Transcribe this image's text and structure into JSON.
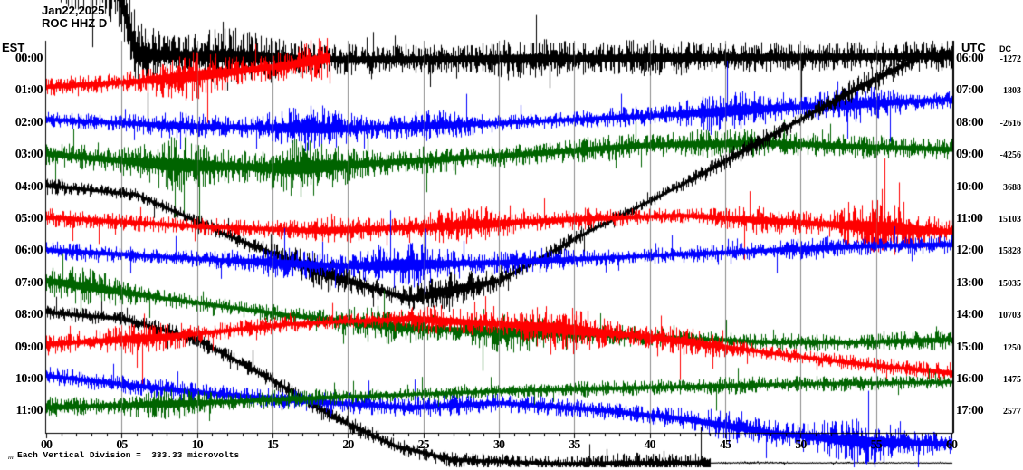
{
  "title": {
    "date": "Jan22,2025",
    "station": "ROC HHZ D"
  },
  "left_axis": {
    "header": "EST"
  },
  "right_axis": {
    "header_time": "UTC",
    "header_dc": "DC"
  },
  "footer": {
    "scale_note": "Each Vertical Division =  333.33 microvolts",
    "corner_mark": "m"
  },
  "colors": {
    "trace_cycle": [
      "#000000",
      "#ff0000",
      "#0000ff",
      "#006400"
    ],
    "grid": "#8c8c8c",
    "axis": "#000000",
    "background": "#ffffff",
    "text": "#000000"
  },
  "chart_data": {
    "type": "line",
    "subtype": "helicorder-seismogram",
    "title": "Jan22,2025 ROC HHZ D",
    "xlabel_ticks": [
      "00",
      "05",
      "10",
      "15",
      "20",
      "25",
      "30",
      "35",
      "40",
      "45",
      "50",
      "55",
      "60"
    ],
    "x_range_minutes": [
      0,
      60
    ],
    "minor_tick_every_min": 1,
    "grid": "vertical-every-5-min",
    "legend_position": "none",
    "scale_note": "Each Vertical Division =  333.33 microvolts",
    "rows": [
      {
        "est": "00:00",
        "utc": "06:00",
        "dc": "-1272",
        "color_index": 0,
        "start_min": 0,
        "end_min": 60,
        "amp": 55,
        "path": [
          [
            0,
            -25
          ],
          [
            4.5,
            -25
          ],
          [
            6,
            60
          ],
          [
            20,
            66
          ],
          [
            40,
            64
          ],
          [
            60,
            62
          ]
        ]
      },
      {
        "est": "01:00",
        "utc": "07:00",
        "dc": "-1803",
        "color_index": 1,
        "start_min": 0,
        "end_min": 18.8,
        "amp": 32,
        "path": [
          [
            0,
            96
          ],
          [
            6,
            90
          ],
          [
            12,
            80
          ],
          [
            16,
            72
          ],
          [
            18.8,
            64
          ]
        ]
      },
      {
        "est": "02:00",
        "utc": "08:00",
        "dc": "-2616",
        "color_index": 2,
        "start_min": 0,
        "end_min": 60,
        "amp": 30,
        "path": [
          [
            0,
            132
          ],
          [
            10,
            140
          ],
          [
            20,
            142
          ],
          [
            30,
            136
          ],
          [
            40,
            128
          ],
          [
            50,
            118
          ],
          [
            60,
            110
          ]
        ]
      },
      {
        "est": "03:00",
        "utc": "09:00",
        "dc": "-4256",
        "color_index": 3,
        "start_min": 0,
        "end_min": 60,
        "amp": 40,
        "path": [
          [
            0,
            170
          ],
          [
            8,
            182
          ],
          [
            16,
            186
          ],
          [
            24,
            178
          ],
          [
            32,
            170
          ],
          [
            40,
            160
          ],
          [
            48,
            158
          ],
          [
            54,
            162
          ],
          [
            60,
            165
          ]
        ]
      },
      {
        "est": "04:00",
        "utc": "10:00",
        "dc": "3688",
        "color_index": 0,
        "start_min": 0,
        "end_min": 60,
        "amp": 24,
        "path": [
          [
            0,
            205
          ],
          [
            6,
            215
          ],
          [
            12,
            260
          ],
          [
            18,
            300
          ],
          [
            24,
            330
          ],
          [
            30,
            310
          ],
          [
            36,
            255
          ],
          [
            42,
            205
          ],
          [
            48,
            150
          ],
          [
            54,
            95
          ],
          [
            58,
            62
          ],
          [
            60,
            58
          ]
        ]
      },
      {
        "est": "05:00",
        "utc": "11:00",
        "dc": "15103",
        "color_index": 1,
        "start_min": 0,
        "end_min": 60,
        "amp": 32,
        "path": [
          [
            0,
            240
          ],
          [
            10,
            250
          ],
          [
            18,
            255
          ],
          [
            26,
            250
          ],
          [
            34,
            243
          ],
          [
            42,
            238
          ],
          [
            50,
            246
          ],
          [
            60,
            256
          ]
        ]
      },
      {
        "est": "06:00",
        "utc": "12:00",
        "dc": "15828",
        "color_index": 2,
        "start_min": 0,
        "end_min": 60,
        "amp": 30,
        "path": [
          [
            0,
            276
          ],
          [
            10,
            286
          ],
          [
            20,
            294
          ],
          [
            30,
            290
          ],
          [
            38,
            284
          ],
          [
            46,
            278
          ],
          [
            54,
            272
          ],
          [
            60,
            270
          ]
        ]
      },
      {
        "est": "07:00",
        "utc": "13:00",
        "dc": "15035",
        "color_index": 3,
        "start_min": 0,
        "end_min": 60,
        "amp": 30,
        "path": [
          [
            0,
            310
          ],
          [
            8,
            330
          ],
          [
            16,
            348
          ],
          [
            24,
            362
          ],
          [
            32,
            368
          ],
          [
            40,
            372
          ],
          [
            48,
            378
          ],
          [
            54,
            378
          ],
          [
            60,
            375
          ]
        ]
      },
      {
        "est": "08:00",
        "utc": "14:00",
        "dc": "10703",
        "color_index": 0,
        "start_min": 0,
        "end_min": 60,
        "amp": 28,
        "amp_break_min": 44,
        "amp2": 2,
        "path": [
          [
            0,
            345
          ],
          [
            5,
            352
          ],
          [
            10,
            375
          ],
          [
            15,
            420
          ],
          [
            19,
            460
          ],
          [
            23,
            492
          ],
          [
            27,
            508
          ],
          [
            34,
            512
          ],
          [
            44,
            511
          ],
          [
            60,
            511
          ]
        ]
      },
      {
        "est": "09:00",
        "utc": "15:00",
        "dc": "1250",
        "color_index": 1,
        "start_min": 0,
        "end_min": 60,
        "amp": 28,
        "path": [
          [
            0,
            380
          ],
          [
            8,
            372
          ],
          [
            16,
            358
          ],
          [
            24,
            352
          ],
          [
            32,
            360
          ],
          [
            40,
            372
          ],
          [
            48,
            390
          ],
          [
            54,
            402
          ],
          [
            60,
            412
          ]
        ]
      },
      {
        "est": "10:00",
        "utc": "16:00",
        "dc": "1475",
        "color_index": 2,
        "start_min": 0,
        "end_min": 60,
        "amp": 34,
        "path": [
          [
            0,
            415
          ],
          [
            8,
            430
          ],
          [
            16,
            442
          ],
          [
            24,
            450
          ],
          [
            30,
            445
          ],
          [
            36,
            452
          ],
          [
            42,
            462
          ],
          [
            48,
            478
          ],
          [
            54,
            488
          ],
          [
            60,
            490
          ]
        ]
      },
      {
        "est": "11:00",
        "utc": "17:00",
        "dc": "2577",
        "color_index": 3,
        "start_min": 0,
        "end_min": 60,
        "amp": 26,
        "path": [
          [
            0,
            450
          ],
          [
            10,
            445
          ],
          [
            20,
            438
          ],
          [
            30,
            432
          ],
          [
            40,
            428
          ],
          [
            50,
            424
          ],
          [
            60,
            422
          ]
        ]
      }
    ]
  }
}
